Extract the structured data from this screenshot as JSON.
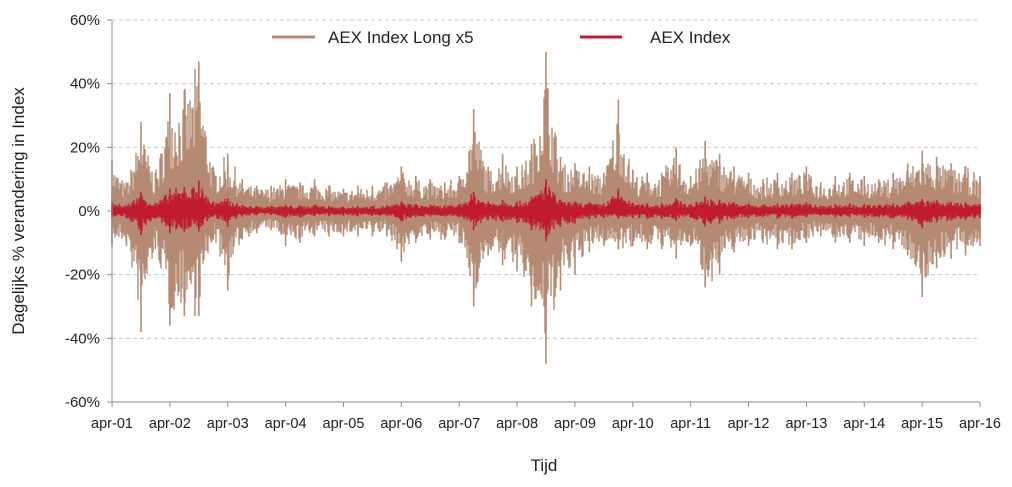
{
  "chart_data": {
    "type": "line",
    "title": "",
    "xlabel": "Tijd",
    "ylabel": "Dagelijks % verandering in Index",
    "ylim": [
      -60,
      60
    ],
    "y_ticks": [
      60,
      40,
      20,
      0,
      -20,
      -40,
      -60
    ],
    "y_tick_labels": [
      "60%",
      "40%",
      "20%",
      "0%",
      "-20%",
      "-40%",
      "-60%"
    ],
    "x_tick_labels": [
      "apr-01",
      "apr-02",
      "apr-03",
      "apr-04",
      "apr-05",
      "apr-06",
      "apr-07",
      "apr-08",
      "apr-09",
      "apr-10",
      "apr-11",
      "apr-12",
      "apr-13",
      "apr-14",
      "apr-15",
      "apr-16"
    ],
    "grid": "horizontal-dashed",
    "legend_position": "top",
    "series": [
      {
        "name": "AEX Index Long x5",
        "color": "#b58a73",
        "x": [
          "2001-04",
          "2001-07",
          "2001-10",
          "2002-01",
          "2002-04",
          "2002-07",
          "2002-10",
          "2003-01",
          "2003-04",
          "2003-07",
          "2003-10",
          "2004-01",
          "2004-04",
          "2004-07",
          "2004-10",
          "2005-01",
          "2005-04",
          "2005-07",
          "2005-10",
          "2006-01",
          "2006-04",
          "2006-07",
          "2006-10",
          "2007-01",
          "2007-04",
          "2007-07",
          "2007-10",
          "2008-01",
          "2008-04",
          "2008-07",
          "2008-10",
          "2009-01",
          "2009-04",
          "2009-07",
          "2009-10",
          "2010-01",
          "2010-04",
          "2010-07",
          "2010-10",
          "2011-01",
          "2011-04",
          "2011-07",
          "2011-10",
          "2012-01",
          "2012-04",
          "2012-07",
          "2012-10",
          "2013-01",
          "2013-04",
          "2013-07",
          "2013-10",
          "2014-01",
          "2014-04",
          "2014-07",
          "2014-10",
          "2015-01",
          "2015-04",
          "2015-07",
          "2015-10",
          "2016-01",
          "2016-04"
        ],
        "high": [
          16,
          9,
          28,
          12,
          37,
          38,
          47,
          14,
          18,
          10,
          8,
          8,
          10,
          9,
          10,
          8,
          7,
          8,
          8,
          9,
          14,
          11,
          10,
          9,
          11,
          32,
          14,
          18,
          14,
          21,
          50,
          17,
          15,
          14,
          12,
          35,
          13,
          12,
          12,
          20,
          11,
          22,
          18,
          14,
          12,
          10,
          12,
          12,
          14,
          9,
          11,
          12,
          11,
          10,
          12,
          15,
          19,
          17,
          15,
          14,
          11
        ],
        "low": [
          -11,
          -11,
          -38,
          -12,
          -36,
          -33,
          -33,
          -9,
          -25,
          -9,
          -7,
          -6,
          -11,
          -10,
          -8,
          -8,
          -8,
          -8,
          -8,
          -8,
          -16,
          -10,
          -9,
          -9,
          -10,
          -30,
          -14,
          -17,
          -19,
          -30,
          -48,
          -25,
          -20,
          -13,
          -11,
          -12,
          -11,
          -12,
          -12,
          -15,
          -11,
          -24,
          -20,
          -13,
          -11,
          -10,
          -12,
          -12,
          -10,
          -8,
          -10,
          -10,
          -11,
          -10,
          -12,
          -14,
          -27,
          -18,
          -15,
          -14,
          -11
        ]
      },
      {
        "name": "AEX Index",
        "color": "#c01c2e",
        "x": [
          "2001-04",
          "2001-07",
          "2001-10",
          "2002-01",
          "2002-04",
          "2002-07",
          "2002-10",
          "2003-01",
          "2003-04",
          "2003-07",
          "2003-10",
          "2004-01",
          "2004-04",
          "2004-07",
          "2004-10",
          "2005-01",
          "2005-04",
          "2005-07",
          "2005-10",
          "2006-01",
          "2006-04",
          "2006-07",
          "2006-10",
          "2007-01",
          "2007-04",
          "2007-07",
          "2007-10",
          "2008-01",
          "2008-04",
          "2008-07",
          "2008-10",
          "2009-01",
          "2009-04",
          "2009-07",
          "2009-10",
          "2010-01",
          "2010-04",
          "2010-07",
          "2010-10",
          "2011-01",
          "2011-04",
          "2011-07",
          "2011-10",
          "2012-01",
          "2012-04",
          "2012-07",
          "2012-10",
          "2013-01",
          "2013-04",
          "2013-07",
          "2013-10",
          "2014-01",
          "2014-04",
          "2014-07",
          "2014-10",
          "2015-01",
          "2015-04",
          "2015-07",
          "2015-10",
          "2016-01",
          "2016-04"
        ],
        "high": [
          3,
          2,
          6,
          2.5,
          7,
          7.5,
          9.5,
          3,
          4,
          2,
          1.6,
          1.6,
          2,
          1.8,
          2,
          1.6,
          1.4,
          1.6,
          1.6,
          1.8,
          3,
          2.2,
          2,
          1.8,
          2.2,
          6,
          3,
          3.5,
          3,
          4.5,
          10,
          3.5,
          3,
          2.8,
          2.4,
          7,
          2.6,
          2.4,
          2.4,
          4,
          2.2,
          4.5,
          3.6,
          2.8,
          2.4,
          2,
          2.4,
          2.4,
          2.8,
          1.8,
          2.2,
          2.4,
          2.2,
          2,
          2.4,
          3,
          3.8,
          3.4,
          3,
          2.8,
          2.2
        ],
        "low": [
          -2.2,
          -2.2,
          -7.5,
          -2.4,
          -7,
          -6.5,
          -6.5,
          -1.8,
          -5,
          -1.8,
          -1.4,
          -1.2,
          -2.2,
          -2,
          -1.6,
          -1.6,
          -1.6,
          -1.6,
          -1.6,
          -1.6,
          -3.2,
          -2,
          -1.8,
          -1.8,
          -2,
          -6,
          -2.8,
          -3.4,
          -3.8,
          -6,
          -9.5,
          -5,
          -4,
          -2.6,
          -2.2,
          -2.4,
          -2.2,
          -2.4,
          -2.4,
          -3,
          -2.2,
          -4.8,
          -4,
          -2.6,
          -2.2,
          -2,
          -2.4,
          -2.4,
          -2,
          -1.6,
          -2,
          -2,
          -2.2,
          -2,
          -2.4,
          -2.8,
          -5.4,
          -3.6,
          -3,
          -2.8,
          -2.2
        ]
      }
    ]
  }
}
